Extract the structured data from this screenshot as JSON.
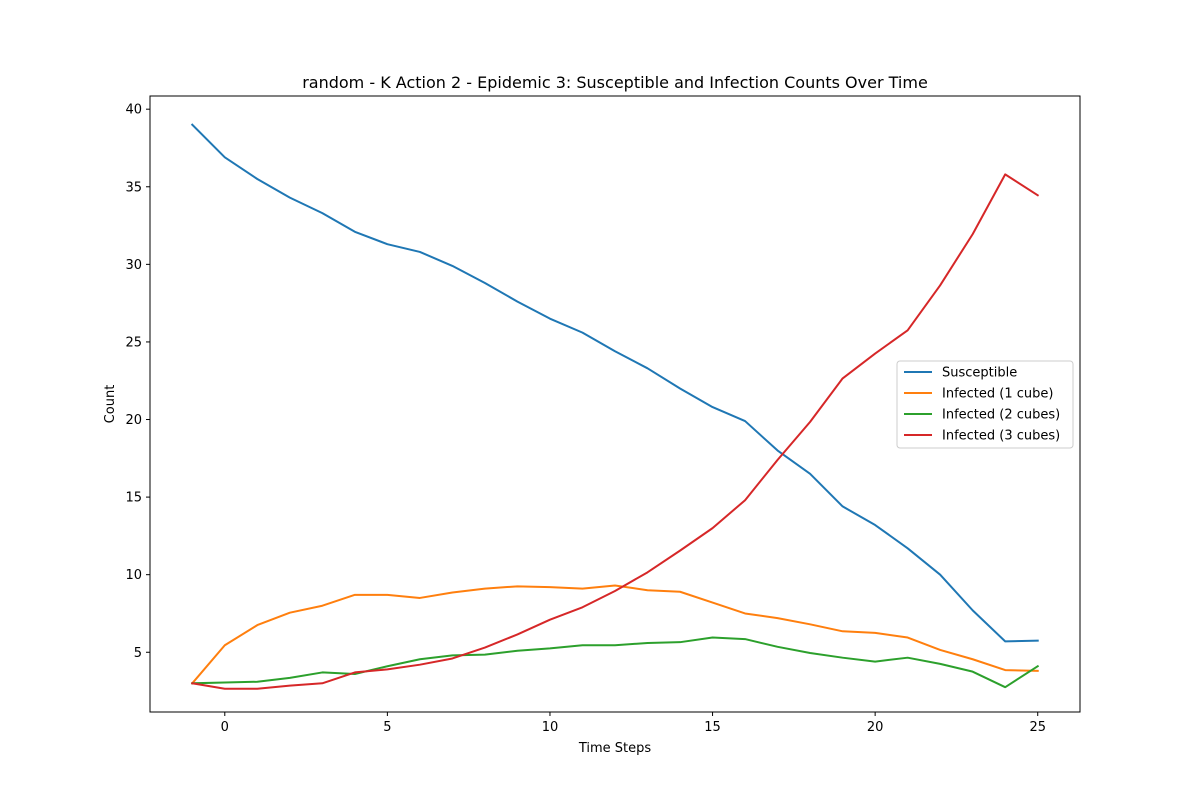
{
  "chart_data": {
    "type": "line",
    "title": "random - K Action 2 - Epidemic 3: Susceptible and Infection Counts Over Time",
    "xlabel": "Time Steps",
    "ylabel": "Count",
    "xlim": [
      -2.3,
      26.3
    ],
    "ylim": [
      1.15,
      40.85
    ],
    "xticks": [
      0,
      5,
      10,
      15,
      20,
      25
    ],
    "yticks": [
      5,
      10,
      15,
      20,
      25,
      30,
      35,
      40
    ],
    "grid": false,
    "legend_position": "center-right",
    "x": [
      -1,
      0,
      1,
      2,
      3,
      4,
      5,
      6,
      7,
      8,
      9,
      10,
      11,
      12,
      13,
      14,
      15,
      16,
      17,
      18,
      19,
      20,
      21,
      22,
      23,
      24,
      25
    ],
    "series": [
      {
        "name": "Susceptible",
        "color": "#1f77b4",
        "values": [
          39.0,
          36.9,
          35.5,
          34.3,
          33.3,
          32.1,
          31.3,
          30.8,
          29.9,
          28.8,
          27.6,
          26.5,
          25.6,
          24.4,
          23.3,
          22.0,
          20.8,
          19.9,
          18.0,
          16.5,
          14.4,
          13.2,
          11.7,
          10.0,
          7.7,
          5.7,
          5.75
        ]
      },
      {
        "name": "Infected (1 cube)",
        "color": "#ff7f0e",
        "values": [
          3.0,
          5.45,
          6.75,
          7.55,
          8.0,
          8.7,
          8.7,
          8.5,
          8.85,
          9.1,
          9.25,
          9.2,
          9.1,
          9.3,
          9.0,
          8.9,
          8.2,
          7.5,
          7.2,
          6.8,
          6.35,
          6.25,
          5.95,
          5.15,
          4.55,
          3.85,
          3.8
        ]
      },
      {
        "name": "Infected (2 cubes)",
        "color": "#2ca02c",
        "values": [
          3.0,
          3.05,
          3.1,
          3.35,
          3.7,
          3.6,
          4.1,
          4.55,
          4.8,
          4.85,
          5.1,
          5.25,
          5.45,
          5.45,
          5.6,
          5.65,
          5.95,
          5.85,
          5.35,
          4.95,
          4.65,
          4.4,
          4.65,
          4.25,
          3.75,
          2.75,
          4.1
        ]
      },
      {
        "name": "Infected (3 cubes)",
        "color": "#d62728",
        "values": [
          3.0,
          2.65,
          2.65,
          2.85,
          3.0,
          3.7,
          3.9,
          4.2,
          4.6,
          5.3,
          6.15,
          7.1,
          7.9,
          8.95,
          10.15,
          11.55,
          13.0,
          14.8,
          17.4,
          19.85,
          22.65,
          24.25,
          25.75,
          28.65,
          31.95,
          35.8,
          34.45
        ]
      }
    ]
  }
}
